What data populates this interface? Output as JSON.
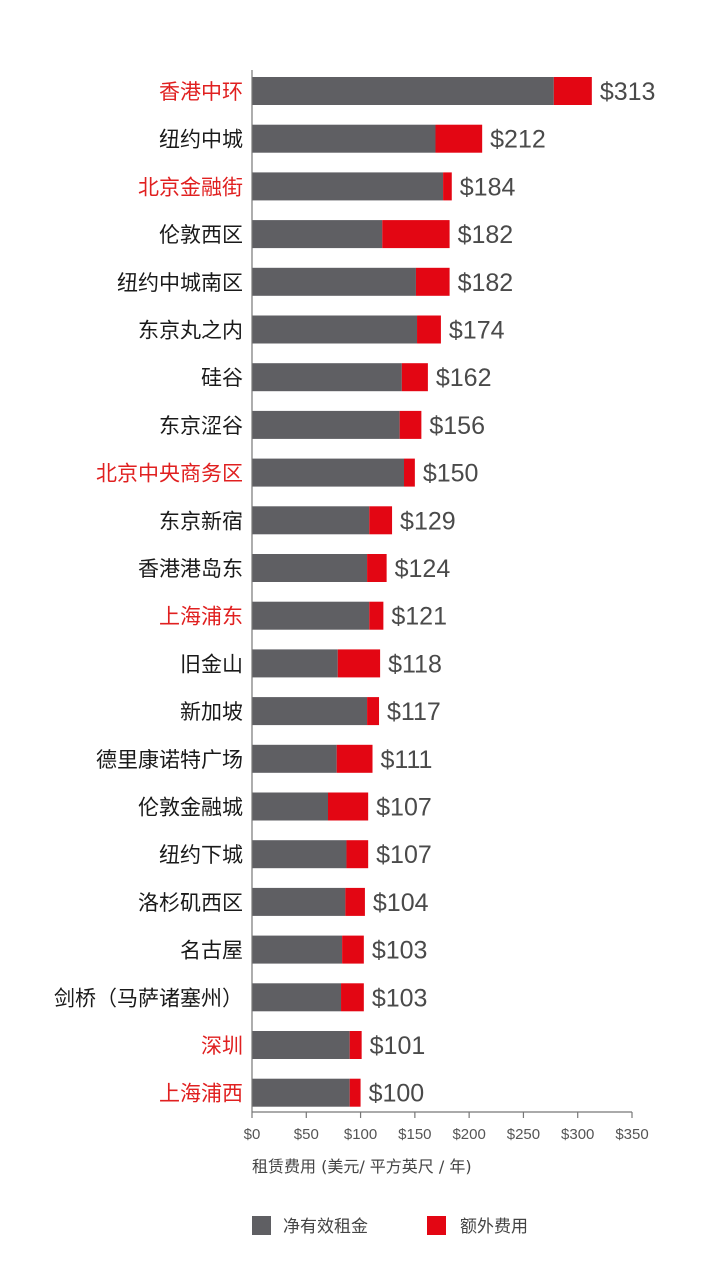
{
  "colors": {
    "net_rent": "#5f5f63",
    "additional": "#e30613",
    "label_default": "#1a1a1a",
    "label_highlight": "#e02020",
    "axis": "#777777"
  },
  "chart_data": {
    "type": "bar",
    "orientation": "horizontal",
    "stacked": true,
    "title": "",
    "xlabel": "租赁费用 (美元/ 平方英尺 / 年)",
    "ylabel": "",
    "xlim": [
      0,
      350
    ],
    "x_ticks": [
      0,
      50,
      100,
      150,
      200,
      250,
      300,
      350
    ],
    "x_tick_labels": [
      "$0",
      "$50",
      "$100",
      "$150",
      "$200",
      "$250",
      "$300",
      "$350"
    ],
    "grid": false,
    "legend_position": "bottom",
    "categories": [
      "香港中环",
      "纽约中城",
      "北京金融街",
      "伦敦西区",
      "纽约中城南区",
      "东京丸之内",
      "硅谷",
      "东京涩谷",
      "北京中央商务区",
      "东京新宿",
      "香港港岛东",
      "上海浦东",
      "旧金山",
      "新加坡",
      "德里康诺特广场",
      "伦敦金融城",
      "纽约下城",
      "洛杉矶西区",
      "名古屋",
      "剑桥（马萨诸塞州）",
      "深圳",
      "上海浦西"
    ],
    "highlighted_categories": [
      "香港中环",
      "北京金融街",
      "北京中央商务区",
      "上海浦东",
      "深圳",
      "上海浦西"
    ],
    "series": [
      {
        "name": "净有效租金",
        "values": [
          278,
          169,
          176,
          120,
          151,
          152,
          138,
          136,
          140,
          108,
          106,
          108,
          79,
          106,
          78,
          70,
          87,
          86,
          83,
          82,
          90,
          90
        ]
      },
      {
        "name": "额外费用",
        "values": [
          35,
          43,
          8,
          62,
          31,
          22,
          24,
          20,
          10,
          21,
          18,
          13,
          39,
          11,
          33,
          37,
          20,
          18,
          20,
          21,
          11,
          10
        ]
      }
    ],
    "totals": [
      313,
      212,
      184,
      182,
      182,
      174,
      162,
      156,
      150,
      129,
      124,
      121,
      118,
      117,
      111,
      107,
      107,
      104,
      103,
      103,
      101,
      100
    ],
    "total_labels": [
      "$313",
      "$212",
      "$184",
      "$182",
      "$182",
      "$174",
      "$162",
      "$156",
      "$150",
      "$129",
      "$124",
      "$121",
      "$118",
      "$117",
      "$111",
      "$107",
      "$107",
      "$104",
      "$103",
      "$103",
      "$101",
      "$100"
    ]
  },
  "legend": {
    "items": [
      {
        "label": "净有效租金",
        "color_key": "net_rent"
      },
      {
        "label": "额外费用",
        "color_key": "additional"
      }
    ]
  }
}
